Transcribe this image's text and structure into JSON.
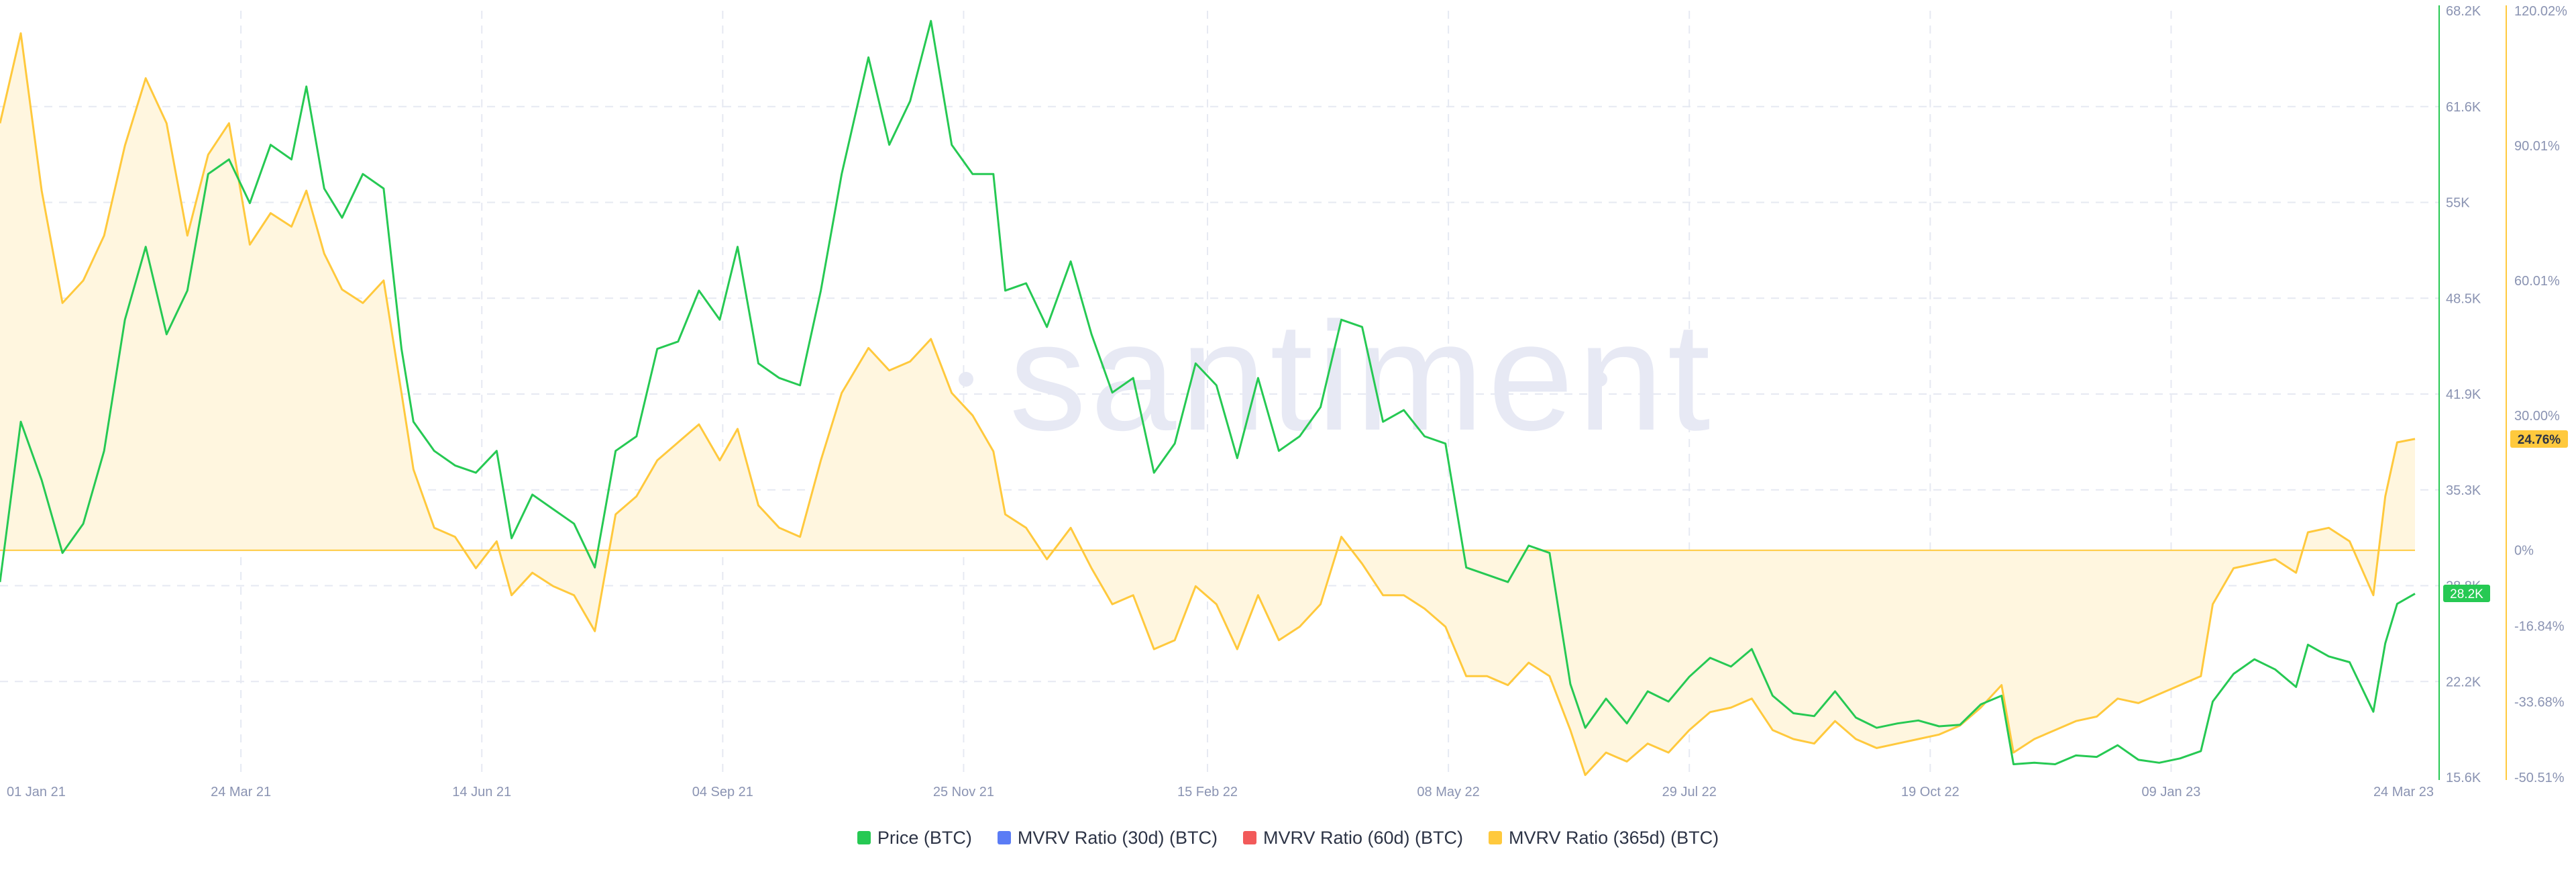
{
  "chart_data": {
    "type": "line",
    "watermark": "santiment",
    "x_tick_labels": [
      "01 Jan 21",
      "24 Mar 21",
      "14 Jun 21",
      "04 Sep 21",
      "25 Nov 21",
      "15 Feb 22",
      "08 May 22",
      "29 Jul 22",
      "19 Oct 22",
      "09 Jan 23",
      "24 Mar 23"
    ],
    "x_range": [
      "2021-01-01",
      "2023-03-24"
    ],
    "y_left": {
      "label": "Price (BTC)",
      "ticks": [
        "68.2K",
        "61.6K",
        "55K",
        "48.5K",
        "41.9K",
        "35.3K",
        "28.8K",
        "22.2K",
        "15.6K"
      ],
      "range": [
        15600,
        68200
      ]
    },
    "y_right": {
      "label": "MVRV Ratio (365d) (BTC)",
      "ticks": [
        "120.02%",
        "90.01%",
        "60.01%",
        "30.00%",
        "0%",
        "-16.84%",
        "-33.68%",
        "-50.51%"
      ],
      "range": [
        -50.51,
        120.02
      ]
    },
    "grid": true,
    "legend_position": "bottom-center",
    "current_labels": {
      "price": "28.2K",
      "mvrv365": "24.76%"
    },
    "series": [
      {
        "name": "Price (BTC)",
        "color": "#26c953",
        "axis": "left",
        "points": [
          [
            "2021-01-01",
            29000
          ],
          [
            "2021-01-08",
            40000
          ],
          [
            "2021-01-15",
            36000
          ],
          [
            "2021-01-22",
            31000
          ],
          [
            "2021-01-29",
            33000
          ],
          [
            "2021-02-05",
            38000
          ],
          [
            "2021-02-12",
            47000
          ],
          [
            "2021-02-19",
            52000
          ],
          [
            "2021-02-26",
            46000
          ],
          [
            "2021-03-05",
            49000
          ],
          [
            "2021-03-12",
            57000
          ],
          [
            "2021-03-19",
            58000
          ],
          [
            "2021-03-26",
            55000
          ],
          [
            "2021-04-02",
            59000
          ],
          [
            "2021-04-09",
            58000
          ],
          [
            "2021-04-14",
            63000
          ],
          [
            "2021-04-20",
            56000
          ],
          [
            "2021-04-26",
            54000
          ],
          [
            "2021-05-03",
            57000
          ],
          [
            "2021-05-10",
            56000
          ],
          [
            "2021-05-16",
            45000
          ],
          [
            "2021-05-20",
            40000
          ],
          [
            "2021-05-27",
            38000
          ],
          [
            "2021-06-03",
            37000
          ],
          [
            "2021-06-10",
            36500
          ],
          [
            "2021-06-17",
            38000
          ],
          [
            "2021-06-22",
            32000
          ],
          [
            "2021-06-29",
            35000
          ],
          [
            "2021-07-06",
            34000
          ],
          [
            "2021-07-13",
            33000
          ],
          [
            "2021-07-20",
            30000
          ],
          [
            "2021-07-27",
            38000
          ],
          [
            "2021-08-03",
            39000
          ],
          [
            "2021-08-10",
            45000
          ],
          [
            "2021-08-17",
            45500
          ],
          [
            "2021-08-24",
            49000
          ],
          [
            "2021-08-31",
            47000
          ],
          [
            "2021-09-06",
            52000
          ],
          [
            "2021-09-13",
            44000
          ],
          [
            "2021-09-20",
            43000
          ],
          [
            "2021-09-27",
            42500
          ],
          [
            "2021-10-04",
            49000
          ],
          [
            "2021-10-11",
            57000
          ],
          [
            "2021-10-20",
            65000
          ],
          [
            "2021-10-27",
            59000
          ],
          [
            "2021-11-03",
            62000
          ],
          [
            "2021-11-10",
            67500
          ],
          [
            "2021-11-17",
            59000
          ],
          [
            "2021-11-24",
            57000
          ],
          [
            "2021-12-01",
            57000
          ],
          [
            "2021-12-05",
            49000
          ],
          [
            "2021-12-12",
            49500
          ],
          [
            "2021-12-19",
            46500
          ],
          [
            "2021-12-27",
            51000
          ],
          [
            "2022-01-03",
            46000
          ],
          [
            "2022-01-10",
            42000
          ],
          [
            "2022-01-17",
            43000
          ],
          [
            "2022-01-24",
            36500
          ],
          [
            "2022-01-31",
            38500
          ],
          [
            "2022-02-07",
            44000
          ],
          [
            "2022-02-14",
            42500
          ],
          [
            "2022-02-21",
            37500
          ],
          [
            "2022-02-28",
            43000
          ],
          [
            "2022-03-07",
            38000
          ],
          [
            "2022-03-14",
            39000
          ],
          [
            "2022-03-21",
            41000
          ],
          [
            "2022-03-28",
            47000
          ],
          [
            "2022-04-04",
            46500
          ],
          [
            "2022-04-11",
            40000
          ],
          [
            "2022-04-18",
            40800
          ],
          [
            "2022-04-25",
            39000
          ],
          [
            "2022-05-02",
            38500
          ],
          [
            "2022-05-09",
            30000
          ],
          [
            "2022-05-16",
            29500
          ],
          [
            "2022-05-23",
            29000
          ],
          [
            "2022-05-30",
            31500
          ],
          [
            "2022-06-06",
            31000
          ],
          [
            "2022-06-13",
            22000
          ],
          [
            "2022-06-18",
            19000
          ],
          [
            "2022-06-25",
            21000
          ],
          [
            "2022-07-02",
            19300
          ],
          [
            "2022-07-09",
            21500
          ],
          [
            "2022-07-16",
            20800
          ],
          [
            "2022-07-23",
            22500
          ],
          [
            "2022-07-30",
            23800
          ],
          [
            "2022-08-06",
            23200
          ],
          [
            "2022-08-13",
            24400
          ],
          [
            "2022-08-20",
            21200
          ],
          [
            "2022-08-27",
            20000
          ],
          [
            "2022-09-03",
            19800
          ],
          [
            "2022-09-10",
            21500
          ],
          [
            "2022-09-17",
            19700
          ],
          [
            "2022-09-24",
            19000
          ],
          [
            "2022-10-01",
            19300
          ],
          [
            "2022-10-08",
            19500
          ],
          [
            "2022-10-15",
            19100
          ],
          [
            "2022-10-22",
            19200
          ],
          [
            "2022-10-29",
            20600
          ],
          [
            "2022-11-05",
            21200
          ],
          [
            "2022-11-09",
            16500
          ],
          [
            "2022-11-16",
            16600
          ],
          [
            "2022-11-23",
            16500
          ],
          [
            "2022-11-30",
            17100
          ],
          [
            "2022-12-07",
            17000
          ],
          [
            "2022-12-14",
            17800
          ],
          [
            "2022-12-21",
            16800
          ],
          [
            "2022-12-28",
            16600
          ],
          [
            "2023-01-04",
            16900
          ],
          [
            "2023-01-11",
            17400
          ],
          [
            "2023-01-15",
            20800
          ],
          [
            "2023-01-22",
            22700
          ],
          [
            "2023-01-29",
            23700
          ],
          [
            "2023-02-05",
            23000
          ],
          [
            "2023-02-12",
            21800
          ],
          [
            "2023-02-16",
            24700
          ],
          [
            "2023-02-23",
            23900
          ],
          [
            "2023-03-02",
            23500
          ],
          [
            "2023-03-10",
            20100
          ],
          [
            "2023-03-14",
            24800
          ],
          [
            "2023-03-18",
            27500
          ],
          [
            "2023-03-24",
            28200
          ]
        ]
      },
      {
        "name": "MVRV Ratio (30d) (BTC)",
        "color": "#5b7cf5",
        "axis": "right",
        "points": []
      },
      {
        "name": "MVRV Ratio (60d) (BTC)",
        "color": "#f25a5a",
        "axis": "right",
        "points": []
      },
      {
        "name": "MVRV Ratio (365d) (BTC)",
        "color": "#ffc93d",
        "axis": "right",
        "points": [
          [
            "2021-01-01",
            95
          ],
          [
            "2021-01-08",
            115
          ],
          [
            "2021-01-15",
            80
          ],
          [
            "2021-01-22",
            55
          ],
          [
            "2021-01-29",
            60
          ],
          [
            "2021-02-05",
            70
          ],
          [
            "2021-02-12",
            90
          ],
          [
            "2021-02-19",
            105
          ],
          [
            "2021-02-26",
            95
          ],
          [
            "2021-03-05",
            70
          ],
          [
            "2021-03-12",
            88
          ],
          [
            "2021-03-19",
            95
          ],
          [
            "2021-03-26",
            68
          ],
          [
            "2021-04-02",
            75
          ],
          [
            "2021-04-09",
            72
          ],
          [
            "2021-04-14",
            80
          ],
          [
            "2021-04-20",
            66
          ],
          [
            "2021-04-26",
            58
          ],
          [
            "2021-05-03",
            55
          ],
          [
            "2021-05-10",
            60
          ],
          [
            "2021-05-16",
            35
          ],
          [
            "2021-05-20",
            18
          ],
          [
            "2021-05-27",
            5
          ],
          [
            "2021-06-03",
            3
          ],
          [
            "2021-06-10",
            -4
          ],
          [
            "2021-06-17",
            2
          ],
          [
            "2021-06-22",
            -10
          ],
          [
            "2021-06-29",
            -5
          ],
          [
            "2021-07-06",
            -8
          ],
          [
            "2021-07-13",
            -10
          ],
          [
            "2021-07-20",
            -18
          ],
          [
            "2021-07-27",
            8
          ],
          [
            "2021-08-03",
            12
          ],
          [
            "2021-08-10",
            20
          ],
          [
            "2021-08-17",
            24
          ],
          [
            "2021-08-24",
            28
          ],
          [
            "2021-08-31",
            20
          ],
          [
            "2021-09-06",
            27
          ],
          [
            "2021-09-13",
            10
          ],
          [
            "2021-09-20",
            5
          ],
          [
            "2021-09-27",
            3
          ],
          [
            "2021-10-04",
            20
          ],
          [
            "2021-10-11",
            35
          ],
          [
            "2021-10-20",
            45
          ],
          [
            "2021-10-27",
            40
          ],
          [
            "2021-11-03",
            42
          ],
          [
            "2021-11-10",
            47
          ],
          [
            "2021-11-17",
            35
          ],
          [
            "2021-11-24",
            30
          ],
          [
            "2021-12-01",
            22
          ],
          [
            "2021-12-05",
            8
          ],
          [
            "2021-12-12",
            5
          ],
          [
            "2021-12-19",
            -2
          ],
          [
            "2021-12-27",
            5
          ],
          [
            "2022-01-03",
            -4
          ],
          [
            "2022-01-10",
            -12
          ],
          [
            "2022-01-17",
            -10
          ],
          [
            "2022-01-24",
            -22
          ],
          [
            "2022-01-31",
            -20
          ],
          [
            "2022-02-07",
            -8
          ],
          [
            "2022-02-14",
            -12
          ],
          [
            "2022-02-21",
            -22
          ],
          [
            "2022-02-28",
            -10
          ],
          [
            "2022-03-07",
            -20
          ],
          [
            "2022-03-14",
            -17
          ],
          [
            "2022-03-21",
            -12
          ],
          [
            "2022-03-28",
            3
          ],
          [
            "2022-04-04",
            -3
          ],
          [
            "2022-04-11",
            -10
          ],
          [
            "2022-04-18",
            -10
          ],
          [
            "2022-04-25",
            -13
          ],
          [
            "2022-05-02",
            -17
          ],
          [
            "2022-05-09",
            -28
          ],
          [
            "2022-05-16",
            -28
          ],
          [
            "2022-05-23",
            -30
          ],
          [
            "2022-05-30",
            -25
          ],
          [
            "2022-06-06",
            -28
          ],
          [
            "2022-06-13",
            -40
          ],
          [
            "2022-06-18",
            -50
          ],
          [
            "2022-06-25",
            -45
          ],
          [
            "2022-07-02",
            -47
          ],
          [
            "2022-07-09",
            -43
          ],
          [
            "2022-07-16",
            -45
          ],
          [
            "2022-07-23",
            -40
          ],
          [
            "2022-07-30",
            -36
          ],
          [
            "2022-08-06",
            -35
          ],
          [
            "2022-08-13",
            -33
          ],
          [
            "2022-08-20",
            -40
          ],
          [
            "2022-08-27",
            -42
          ],
          [
            "2022-09-03",
            -43
          ],
          [
            "2022-09-10",
            -38
          ],
          [
            "2022-09-17",
            -42
          ],
          [
            "2022-09-24",
            -44
          ],
          [
            "2022-10-01",
            -43
          ],
          [
            "2022-10-08",
            -42
          ],
          [
            "2022-10-15",
            -41
          ],
          [
            "2022-10-22",
            -39
          ],
          [
            "2022-10-29",
            -35
          ],
          [
            "2022-11-05",
            -30
          ],
          [
            "2022-11-09",
            -45
          ],
          [
            "2022-11-16",
            -42
          ],
          [
            "2022-11-23",
            -40
          ],
          [
            "2022-11-30",
            -38
          ],
          [
            "2022-12-07",
            -37
          ],
          [
            "2022-12-14",
            -33
          ],
          [
            "2022-12-21",
            -34
          ],
          [
            "2022-12-28",
            -32
          ],
          [
            "2023-01-04",
            -30
          ],
          [
            "2023-01-11",
            -28
          ],
          [
            "2023-01-15",
            -12
          ],
          [
            "2023-01-22",
            -4
          ],
          [
            "2023-01-29",
            -3
          ],
          [
            "2023-02-05",
            -2
          ],
          [
            "2023-02-12",
            -5
          ],
          [
            "2023-02-16",
            4
          ],
          [
            "2023-02-23",
            5
          ],
          [
            "2023-03-02",
            2
          ],
          [
            "2023-03-10",
            -10
          ],
          [
            "2023-03-14",
            12
          ],
          [
            "2023-03-18",
            24
          ],
          [
            "2023-03-24",
            24.76
          ]
        ]
      }
    ]
  }
}
